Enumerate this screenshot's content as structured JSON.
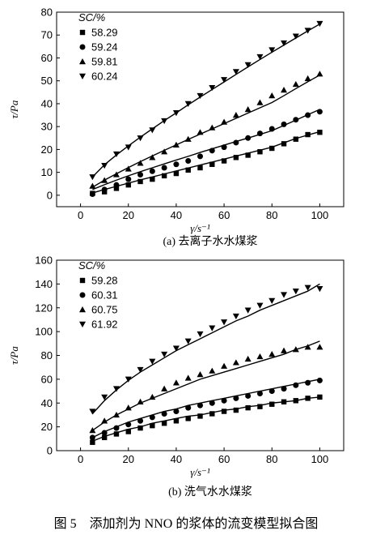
{
  "figure_caption": "图 5　添加剂为 NNO 的浆体的流变模型拟合图",
  "chart_data": [
    {
      "type": "scatter",
      "subcaption": "(a) 去离子水水煤浆",
      "xlabel": "γ/s⁻¹",
      "ylabel": "τ/Pa",
      "xlim": [
        -10,
        110
      ],
      "ylim": [
        -5,
        80
      ],
      "xticks": [
        0,
        20,
        40,
        60,
        80,
        100
      ],
      "yticks": [
        0,
        10,
        20,
        30,
        40,
        50,
        60,
        70,
        80
      ],
      "legend_title": "SC/%",
      "legend_position": "top-left",
      "x": [
        5,
        10,
        15,
        20,
        25,
        30,
        35,
        40,
        45,
        50,
        55,
        60,
        65,
        70,
        75,
        80,
        85,
        90,
        95,
        100
      ],
      "series": [
        {
          "name": "58.29",
          "marker": "square",
          "values": [
            0.8,
            1.5,
            3.0,
            4.5,
            6.0,
            7.0,
            8.5,
            9.5,
            11.0,
            12.0,
            13.5,
            15.0,
            16.5,
            17.5,
            19.0,
            20.5,
            22.5,
            24.5,
            26.5,
            27.5
          ],
          "fit": [
            1.0,
            2.5,
            3.9,
            5.3,
            6.7,
            8.0,
            9.3,
            10.6,
            11.9,
            13.2,
            14.5,
            15.8,
            17.1,
            18.4,
            19.7,
            21.0,
            22.9,
            24.8,
            26.3,
            27.8
          ]
        },
        {
          "name": "59.24",
          "marker": "circle",
          "values": [
            0.5,
            2.5,
            4.5,
            7.0,
            9.0,
            10.5,
            12.0,
            13.5,
            15.0,
            17.0,
            19.5,
            21.0,
            23.0,
            25.0,
            27.0,
            29.0,
            31.0,
            33.0,
            35.0,
            36.5
          ],
          "fit": [
            2.5,
            4.6,
            6.6,
            8.5,
            10.3,
            12.0,
            13.7,
            15.4,
            17.0,
            18.7,
            20.3,
            21.9,
            23.5,
            25.0,
            26.6,
            28.2,
            30.5,
            32.8,
            35.2,
            37.5
          ]
        },
        {
          "name": "59.81",
          "marker": "triangle-up",
          "values": [
            4.0,
            6.5,
            9.0,
            11.5,
            14.0,
            16.5,
            19.0,
            22.0,
            24.5,
            27.5,
            29.5,
            32.0,
            35.0,
            37.5,
            40.5,
            43.5,
            46.0,
            48.5,
            51.0,
            53.0
          ],
          "fit": [
            3.5,
            6.6,
            9.4,
            12.1,
            14.7,
            17.2,
            19.6,
            22.0,
            24.4,
            26.7,
            29.0,
            31.3,
            33.6,
            35.9,
            38.2,
            40.5,
            43.5,
            46.6,
            49.6,
            52.5
          ]
        },
        {
          "name": "60.24",
          "marker": "triangle-down",
          "values": [
            8.0,
            13.0,
            18.0,
            21.0,
            25.0,
            28.5,
            32.5,
            36.0,
            40.0,
            43.5,
            47.0,
            50.5,
            54.0,
            57.0,
            60.5,
            63.5,
            66.5,
            69.5,
            72.0,
            75.0
          ],
          "fit": [
            8.0,
            13.3,
            17.6,
            21.6,
            25.4,
            29.0,
            32.6,
            36.0,
            39.5,
            42.9,
            46.2,
            49.5,
            52.8,
            56.1,
            59.3,
            62.5,
            65.6,
            68.7,
            71.8,
            74.8
          ]
        }
      ]
    },
    {
      "type": "scatter",
      "subcaption": "(b) 洗气水水煤浆",
      "xlabel": "γ/s⁻¹",
      "ylabel": "τ/Pa",
      "xlim": [
        -10,
        110
      ],
      "ylim": [
        0,
        160
      ],
      "xticks": [
        0,
        20,
        40,
        60,
        80,
        100
      ],
      "yticks": [
        0,
        20,
        40,
        60,
        80,
        100,
        120,
        140,
        160
      ],
      "legend_title": "SC/%",
      "legend_position": "top-left",
      "x": [
        5,
        10,
        15,
        20,
        25,
        30,
        35,
        40,
        45,
        50,
        55,
        60,
        65,
        70,
        75,
        80,
        85,
        90,
        95,
        100
      ],
      "series": [
        {
          "name": "59.28",
          "marker": "square",
          "values": [
            7,
            11,
            14,
            16,
            19,
            21,
            23,
            25,
            27,
            29,
            31,
            33,
            34,
            36,
            37,
            39,
            41,
            42,
            44,
            45
          ],
          "fit": [
            8,
            12,
            15,
            18,
            20,
            23,
            25,
            27,
            29,
            30,
            32,
            34,
            35,
            37,
            38,
            40,
            41,
            42,
            44,
            45
          ]
        },
        {
          "name": "60.31",
          "marker": "circle",
          "values": [
            11,
            15,
            19,
            22,
            25,
            28,
            31,
            33,
            36,
            38,
            40,
            42,
            44,
            46,
            48,
            50,
            52,
            55,
            57,
            59
          ],
          "fit": [
            11,
            16,
            20,
            24,
            27,
            30,
            33,
            35,
            38,
            40,
            42,
            44,
            46,
            48,
            50,
            52,
            54,
            56,
            58,
            60
          ]
        },
        {
          "name": "60.75",
          "marker": "triangle-up",
          "values": [
            17,
            25,
            30,
            36,
            41,
            45,
            52,
            57,
            61,
            64,
            67,
            71,
            74,
            77,
            79,
            81,
            84,
            85,
            87,
            87
          ],
          "fit": [
            17,
            24,
            30,
            35,
            40,
            44,
            48,
            52,
            56,
            60,
            63,
            66,
            69,
            72,
            75,
            78,
            81,
            85,
            88,
            92
          ]
        },
        {
          "name": "61.92",
          "marker": "triangle-down",
          "values": [
            33,
            45,
            52,
            60,
            68,
            75,
            81,
            86,
            92,
            98,
            103,
            108,
            113,
            118,
            122,
            126,
            131,
            134,
            137,
            136
          ],
          "fit": [
            31,
            42,
            51,
            59,
            66,
            72,
            78,
            84,
            89,
            94,
            99,
            104,
            109,
            113,
            118,
            122,
            126,
            130,
            134,
            140
          ]
        }
      ]
    }
  ]
}
